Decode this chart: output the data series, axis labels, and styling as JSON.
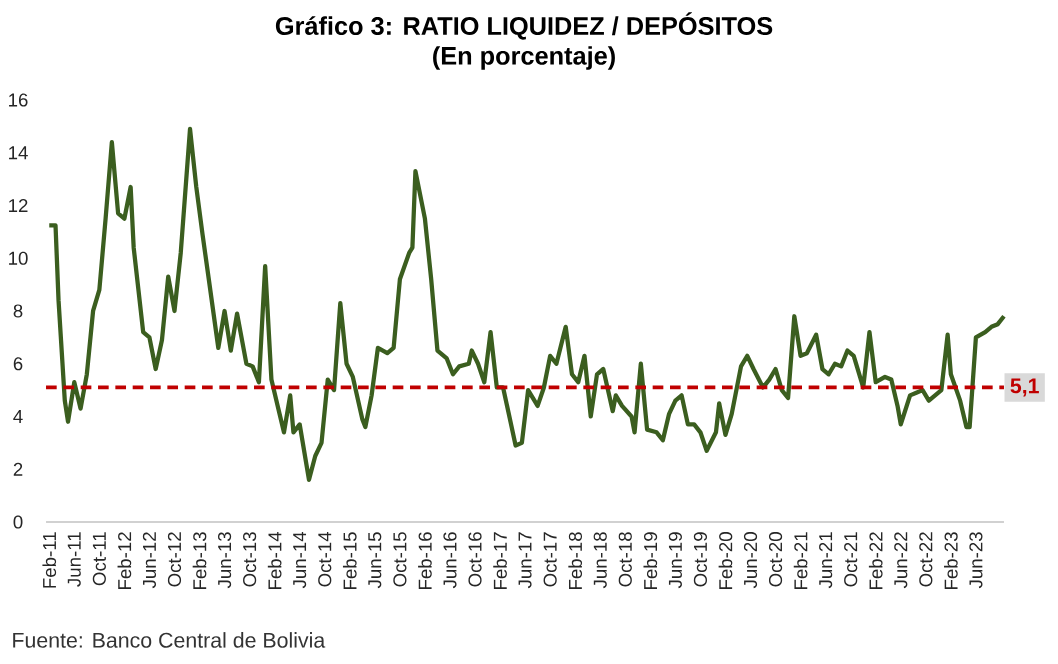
{
  "chart_data": {
    "type": "line",
    "title": "Gráfico 3: RATIO LIQUIDEZ / DEPÓSITOS",
    "subtitle": "(En porcentaje)",
    "annotations": [
      "Fuente:    Banco Central de Bolivia"
    ],
    "x": [
      "2011-02-01",
      "2011-03-01",
      "2011-03-16",
      "2011-04-16",
      "2011-05-01",
      "2011-06-01",
      "2011-07-01",
      "2011-08-01",
      "2011-09-01",
      "2011-10-01",
      "2011-11-01",
      "2011-12-01",
      "2012-01-01",
      "2012-02-01",
      "2012-03-01",
      "2012-03-16",
      "2012-05-01",
      "2012-06-01",
      "2012-07-01",
      "2012-08-01",
      "2012-09-01",
      "2012-10-01",
      "2012-11-01",
      "2012-12-16",
      "2013-01-16",
      "2013-02-16",
      "2013-03-16",
      "2013-05-01",
      "2013-06-01",
      "2013-07-01",
      "2013-08-01",
      "2013-09-16",
      "2013-10-16",
      "2013-11-16",
      "2013-12-16",
      "2014-01-16",
      "2014-02-16",
      "2014-03-16",
      "2014-04-16",
      "2014-05-01",
      "2014-06-01",
      "2014-07-16",
      "2014-08-16",
      "2014-09-16",
      "2014-10-16",
      "2014-11-16",
      "2014-12-16",
      "2015-01-16",
      "2015-02-16",
      "2015-04-01",
      "2015-04-16",
      "2015-05-16",
      "2015-06-16",
      "2015-08-01",
      "2015-09-01",
      "2015-10-01",
      "2015-11-16",
      "2015-12-01",
      "2015-12-16",
      "2016-02-01",
      "2016-03-01",
      "2016-04-01",
      "2016-05-16",
      "2016-06-16",
      "2016-07-16",
      "2016-09-01",
      "2016-09-16",
      "2016-10-16",
      "2016-11-16",
      "2016-12-16",
      "2017-01-16",
      "2017-02-16",
      "2017-04-16",
      "2017-05-16",
      "2017-06-16",
      "2017-08-01",
      "2017-09-01",
      "2017-10-01",
      "2017-11-01",
      "2017-12-16",
      "2018-01-16",
      "2018-02-16",
      "2018-03-16",
      "2018-04-16",
      "2018-05-16",
      "2018-06-16",
      "2018-08-01",
      "2018-08-16",
      "2018-09-16",
      "2018-11-01",
      "2018-11-16",
      "2018-12-16",
      "2019-01-16",
      "2019-03-01",
      "2019-04-01",
      "2019-05-01",
      "2019-06-01",
      "2019-07-01",
      "2019-08-01",
      "2019-09-01",
      "2019-10-01",
      "2019-11-01",
      "2019-12-16",
      "2020-01-01",
      "2020-02-01",
      "2020-03-01",
      "2020-04-16",
      "2020-05-16",
      "2020-06-16",
      "2020-08-01",
      "2020-09-01",
      "2020-10-01",
      "2020-11-01",
      "2020-12-01",
      "2021-01-01",
      "2021-02-01",
      "2021-03-01",
      "2021-04-16",
      "2021-05-16",
      "2021-06-16",
      "2021-07-16",
      "2021-08-16",
      "2021-09-16",
      "2021-10-16",
      "2021-12-01",
      "2022-01-01",
      "2022-02-01",
      "2022-03-16",
      "2022-04-16",
      "2022-05-16",
      "2022-06-01",
      "2022-07-16",
      "2022-08-16",
      "2022-09-16",
      "2022-10-16",
      "2022-11-16",
      "2022-12-16",
      "2023-01-16",
      "2023-02-01",
      "2023-03-16",
      "2023-04-16",
      "2023-05-01",
      "2023-06-01",
      "2023-07-16",
      "2023-08-16",
      "2023-09-16",
      "2023-10-16"
    ],
    "series": [
      {
        "color": "#3b5e1f",
        "values": [
          11.25,
          11.25,
          8.4,
          4.6,
          3.8,
          5.3,
          4.3,
          5.6,
          8.0,
          8.8,
          11.5,
          14.4,
          11.7,
          11.5,
          12.7,
          10.4,
          7.2,
          7.0,
          5.8,
          6.9,
          9.3,
          8.0,
          10.2,
          14.9,
          12.7,
          10.9,
          9.2,
          6.6,
          8.0,
          6.5,
          7.9,
          6.0,
          5.9,
          5.3,
          9.7,
          5.4,
          4.4,
          3.4,
          4.8,
          3.4,
          3.7,
          1.6,
          2.5,
          3.0,
          5.4,
          5.0,
          8.3,
          6.0,
          5.5,
          3.9,
          3.6,
          4.8,
          6.6,
          6.4,
          6.6,
          9.2,
          10.2,
          10.4,
          13.3,
          11.5,
          9.2,
          6.5,
          6.2,
          5.6,
          5.9,
          6.0,
          6.5,
          6.0,
          5.3,
          7.2,
          5.1,
          5.1,
          2.9,
          3.0,
          5.0,
          4.4,
          5.1,
          6.3,
          6.0,
          7.4,
          5.6,
          5.3,
          6.3,
          4.0,
          5.6,
          5.8,
          4.2,
          4.8,
          4.4,
          4.0,
          3.4,
          6.0,
          3.5,
          3.4,
          3.1,
          4.1,
          4.6,
          4.8,
          3.7,
          3.7,
          3.4,
          2.7,
          3.4,
          4.5,
          3.3,
          4.1,
          5.9,
          6.3,
          5.8,
          5.1,
          5.4,
          5.8,
          5.0,
          4.7,
          7.8,
          6.3,
          6.4,
          7.1,
          5.8,
          5.6,
          6.0,
          5.9,
          6.5,
          6.3,
          5.1,
          7.2,
          5.3,
          5.5,
          5.4,
          4.4,
          3.7,
          4.8,
          4.9,
          5.0,
          4.6,
          4.8,
          5.0,
          7.1,
          5.6,
          4.6,
          3.6,
          3.6,
          7.0,
          7.2,
          7.4,
          7.5,
          7.8
        ]
      }
    ],
    "xlim": [
      "2011-01-16",
      "2023-10-16"
    ],
    "xticks": [
      {
        "value": "2011-02",
        "label": "Feb-11"
      },
      {
        "value": "2011-06",
        "label": "Jun-11"
      },
      {
        "value": "2011-10",
        "label": "Oct-11"
      },
      {
        "value": "2012-02",
        "label": "Feb-12"
      },
      {
        "value": "2012-06",
        "label": "Jun-12"
      },
      {
        "value": "2012-10",
        "label": "Oct-12"
      },
      {
        "value": "2013-02",
        "label": "Feb-13"
      },
      {
        "value": "2013-06",
        "label": "Jun-13"
      },
      {
        "value": "2013-10",
        "label": "Oct-13"
      },
      {
        "value": "2014-02",
        "label": "Feb-14"
      },
      {
        "value": "2014-06",
        "label": "Jun-14"
      },
      {
        "value": "2014-10",
        "label": "Oct-14"
      },
      {
        "value": "2015-02",
        "label": "Feb-15"
      },
      {
        "value": "2015-06",
        "label": "Jun-15"
      },
      {
        "value": "2015-10",
        "label": "Oct-15"
      },
      {
        "value": "2016-02",
        "label": "Feb-16"
      },
      {
        "value": "2016-06",
        "label": "Jun-16"
      },
      {
        "value": "2016-10",
        "label": "Oct-16"
      },
      {
        "value": "2017-02",
        "label": "Feb-17"
      },
      {
        "value": "2017-06",
        "label": "Jun-17"
      },
      {
        "value": "2017-10",
        "label": "Oct-17"
      },
      {
        "value": "2018-02",
        "label": "Feb-18"
      },
      {
        "value": "2018-06",
        "label": "Jun-18"
      },
      {
        "value": "2018-10",
        "label": "Oct-18"
      },
      {
        "value": "2019-02",
        "label": "Feb-19"
      },
      {
        "value": "2019-06",
        "label": "Jun-19"
      },
      {
        "value": "2019-10",
        "label": "Oct-19"
      },
      {
        "value": "2020-02",
        "label": "Feb-20"
      },
      {
        "value": "2020-06",
        "label": "Jun-20"
      },
      {
        "value": "2020-10",
        "label": "Oct-20"
      },
      {
        "value": "2021-02",
        "label": "Feb-21"
      },
      {
        "value": "2021-06",
        "label": "Jun-21"
      },
      {
        "value": "2021-10",
        "label": "Oct-21"
      },
      {
        "value": "2022-02",
        "label": "Feb-22"
      },
      {
        "value": "2022-06",
        "label": "Jun-22"
      },
      {
        "value": "2022-10",
        "label": "Oct-22"
      },
      {
        "value": "2023-02",
        "label": "Feb-23"
      },
      {
        "value": "2023-06",
        "label": "Jun-23"
      }
    ],
    "ylim": [
      0,
      16
    ],
    "yticks": [
      0,
      2,
      4,
      6,
      8,
      10,
      12,
      14,
      16
    ],
    "ref_lines": [
      {
        "axis": "y",
        "value": 5.1,
        "label": "5,1",
        "color": "#c00000",
        "line_style": "dashed"
      }
    ]
  }
}
